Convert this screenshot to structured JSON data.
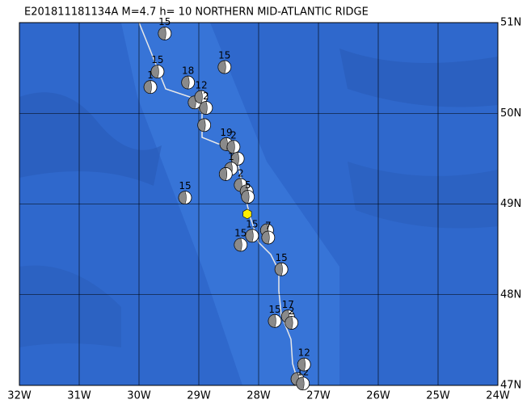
{
  "map": {
    "title": "E201811181134A M=4.7 h= 10 NORTHERN MID-ATLANTIC RIDGE",
    "lon_range": [
      -32,
      -24
    ],
    "lat_range": [
      47,
      51
    ],
    "lon_ticks": [
      {
        "value": -32,
        "label": "32W"
      },
      {
        "value": -31,
        "label": "31W"
      },
      {
        "value": -30,
        "label": "30W"
      },
      {
        "value": -29,
        "label": "29W"
      },
      {
        "value": -28,
        "label": "28W"
      },
      {
        "value": -27,
        "label": "27W"
      },
      {
        "value": -26,
        "label": "26W"
      },
      {
        "value": -25,
        "label": "25W"
      },
      {
        "value": -24,
        "label": "24W"
      }
    ],
    "lat_ticks": [
      {
        "value": 47,
        "label": "47N"
      },
      {
        "value": 48,
        "label": "48N"
      },
      {
        "value": 49,
        "label": "49N"
      },
      {
        "value": 50,
        "label": "50N"
      },
      {
        "value": 51,
        "label": "51N"
      }
    ],
    "epicenter": {
      "lon": -28.19,
      "lat": 48.89
    },
    "events": [
      {
        "lon": -29.57,
        "lat": 50.88,
        "label": "15"
      },
      {
        "lon": -29.69,
        "lat": 50.46,
        "label": "15"
      },
      {
        "lon": -29.81,
        "lat": 50.29,
        "label": "1"
      },
      {
        "lon": -29.18,
        "lat": 50.34,
        "label": "18"
      },
      {
        "lon": -28.57,
        "lat": 50.51,
        "label": "15"
      },
      {
        "lon": -29.07,
        "lat": 50.12
      },
      {
        "lon": -28.96,
        "lat": 50.18,
        "label": "12"
      },
      {
        "lon": -28.88,
        "lat": 50.06,
        "label": "2"
      },
      {
        "lon": -28.91,
        "lat": 49.87
      },
      {
        "lon": -28.54,
        "lat": 49.66,
        "label": "19"
      },
      {
        "lon": -28.42,
        "lat": 49.63,
        "label": "2"
      },
      {
        "lon": -28.35,
        "lat": 49.5
      },
      {
        "lon": -28.46,
        "lat": 49.39,
        "label": "1"
      },
      {
        "lon": -28.55,
        "lat": 49.33
      },
      {
        "lon": -28.3,
        "lat": 49.21,
        "label": "2"
      },
      {
        "lon": -28.2,
        "lat": 49.14
      },
      {
        "lon": -28.18,
        "lat": 49.08,
        "label": "5"
      },
      {
        "lon": -29.23,
        "lat": 49.07,
        "label": "15"
      },
      {
        "lon": -28.11,
        "lat": 48.65,
        "label": "15"
      },
      {
        "lon": -28.3,
        "lat": 48.55,
        "label": "15"
      },
      {
        "lon": -27.86,
        "lat": 48.71
      },
      {
        "lon": -27.84,
        "lat": 48.63,
        "label": "7"
      },
      {
        "lon": -27.62,
        "lat": 48.28,
        "label": "15"
      },
      {
        "lon": -27.73,
        "lat": 47.71,
        "label": "15"
      },
      {
        "lon": -27.51,
        "lat": 47.76,
        "label": "17"
      },
      {
        "lon": -27.45,
        "lat": 47.69,
        "label": "2"
      },
      {
        "lon": -27.35,
        "lat": 47.07
      },
      {
        "lon": -27.26,
        "lat": 47.02,
        "label": "12"
      },
      {
        "lon": -27.24,
        "lat": 47.23,
        "label": "12"
      }
    ]
  }
}
